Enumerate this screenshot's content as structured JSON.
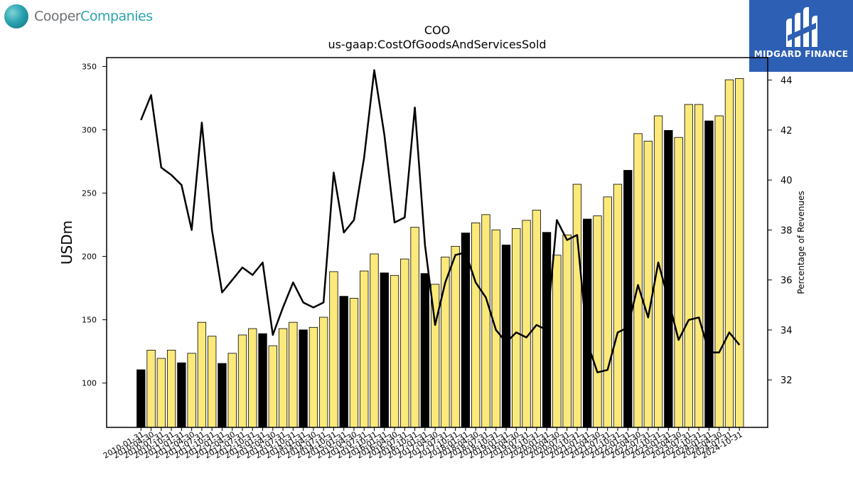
{
  "brand_left": {
    "word1": "Cooper",
    "word2": "Companies"
  },
  "brand_right": {
    "name": "MIDGARD FINANCE",
    "color": "#2d5fb4"
  },
  "colors": {
    "bar_default": "#fbe97a",
    "bar_highlight": "#000000",
    "line": "#000000"
  },
  "chart_data": {
    "type": "bar",
    "title": "COO",
    "subtitle": "us-gaap:CostOfGoodsAndServicesSold",
    "ylabel": "USDm",
    "y2label": "Percentage of Revenues",
    "ylim": [
      65,
      357
    ],
    "y2lim": [
      30.1,
      44.9
    ],
    "yticks": [
      100,
      150,
      200,
      250,
      300,
      350
    ],
    "y2ticks": [
      32,
      34,
      36,
      38,
      40,
      42,
      44
    ],
    "categories": [
      "2010-01-31",
      "2010-04-30",
      "2010-07-31",
      "2010-10-31",
      "2011-01-31",
      "2011-04-30",
      "2011-07-31",
      "2011-10-31",
      "2012-01-31",
      "2012-04-30",
      "2012-07-31",
      "2012-10-31",
      "2013-01-31",
      "2013-04-30",
      "2013-07-31",
      "2013-10-31",
      "2014-01-31",
      "2014-04-30",
      "2014-07-31",
      "2014-10-31",
      "2015-01-31",
      "2015-04-30",
      "2015-07-31",
      "2015-10-31",
      "2016-01-31",
      "2016-04-30",
      "2016-07-31",
      "2016-10-31",
      "2017-01-31",
      "2017-04-30",
      "2017-07-31",
      "2017-10-31",
      "2018-01-31",
      "2018-04-30",
      "2018-07-31",
      "2018-10-31",
      "2019-01-31",
      "2019-04-30",
      "2019-07-31",
      "2019-10-31",
      "2020-01-31",
      "2020-04-30",
      "2020-07-31",
      "2020-10-31",
      "2021-01-31",
      "2021-04-30",
      "2021-07-31",
      "2021-10-31",
      "2022-01-31",
      "2022-04-30",
      "2022-07-31",
      "2022-10-31",
      "2023-01-31",
      "2023-04-30",
      "2023-07-31",
      "2023-10-31",
      "2024-01-31",
      "2024-04-30",
      "2024-07-31",
      "2024-10-31"
    ],
    "series": [
      {
        "type": "bar",
        "values": [
          110.5,
          126,
          119.5,
          126,
          116,
          123.5,
          148,
          137,
          115.5,
          123.5,
          138,
          143,
          139,
          129.5,
          143,
          148,
          142,
          144,
          152,
          188,
          168.5,
          167,
          188.5,
          202,
          187,
          185,
          198,
          223,
          186.5,
          178,
          199.5,
          208,
          218.5,
          226.5,
          233,
          221,
          209,
          222,
          228.5,
          236.5,
          219,
          201,
          217,
          257,
          229.5,
          232,
          247,
          257,
          268,
          297,
          291,
          311,
          299.5,
          294,
          320,
          320,
          307,
          311,
          339.5,
          340.5
        ],
        "highlight": [
          0,
          4,
          8,
          12,
          16,
          20,
          24,
          28,
          32,
          36,
          40,
          44,
          48,
          52,
          56
        ]
      },
      {
        "type": "line",
        "name": "Percentage of Revenues",
        "values": [
          42.4,
          43.4,
          40.5,
          40.2,
          39.8,
          38.0,
          42.3,
          38.0,
          35.5,
          36.0,
          36.5,
          36.2,
          36.7,
          33.8,
          34.9,
          35.9,
          35.1,
          34.9,
          35.1,
          40.3,
          37.9,
          38.4,
          40.9,
          44.4,
          41.8,
          38.3,
          38.5,
          42.9,
          37.4,
          34.2,
          35.9,
          37.0,
          37.1,
          35.9,
          35.3,
          34.0,
          33.5,
          33.9,
          33.7,
          34.2,
          34.0,
          38.4,
          37.6,
          37.8,
          33.5,
          32.3,
          32.4,
          33.9,
          34.1,
          35.8,
          34.5,
          36.7,
          35.2,
          33.6,
          34.4,
          34.5,
          33.1,
          33.1,
          33.9,
          33.4
        ]
      }
    ]
  }
}
